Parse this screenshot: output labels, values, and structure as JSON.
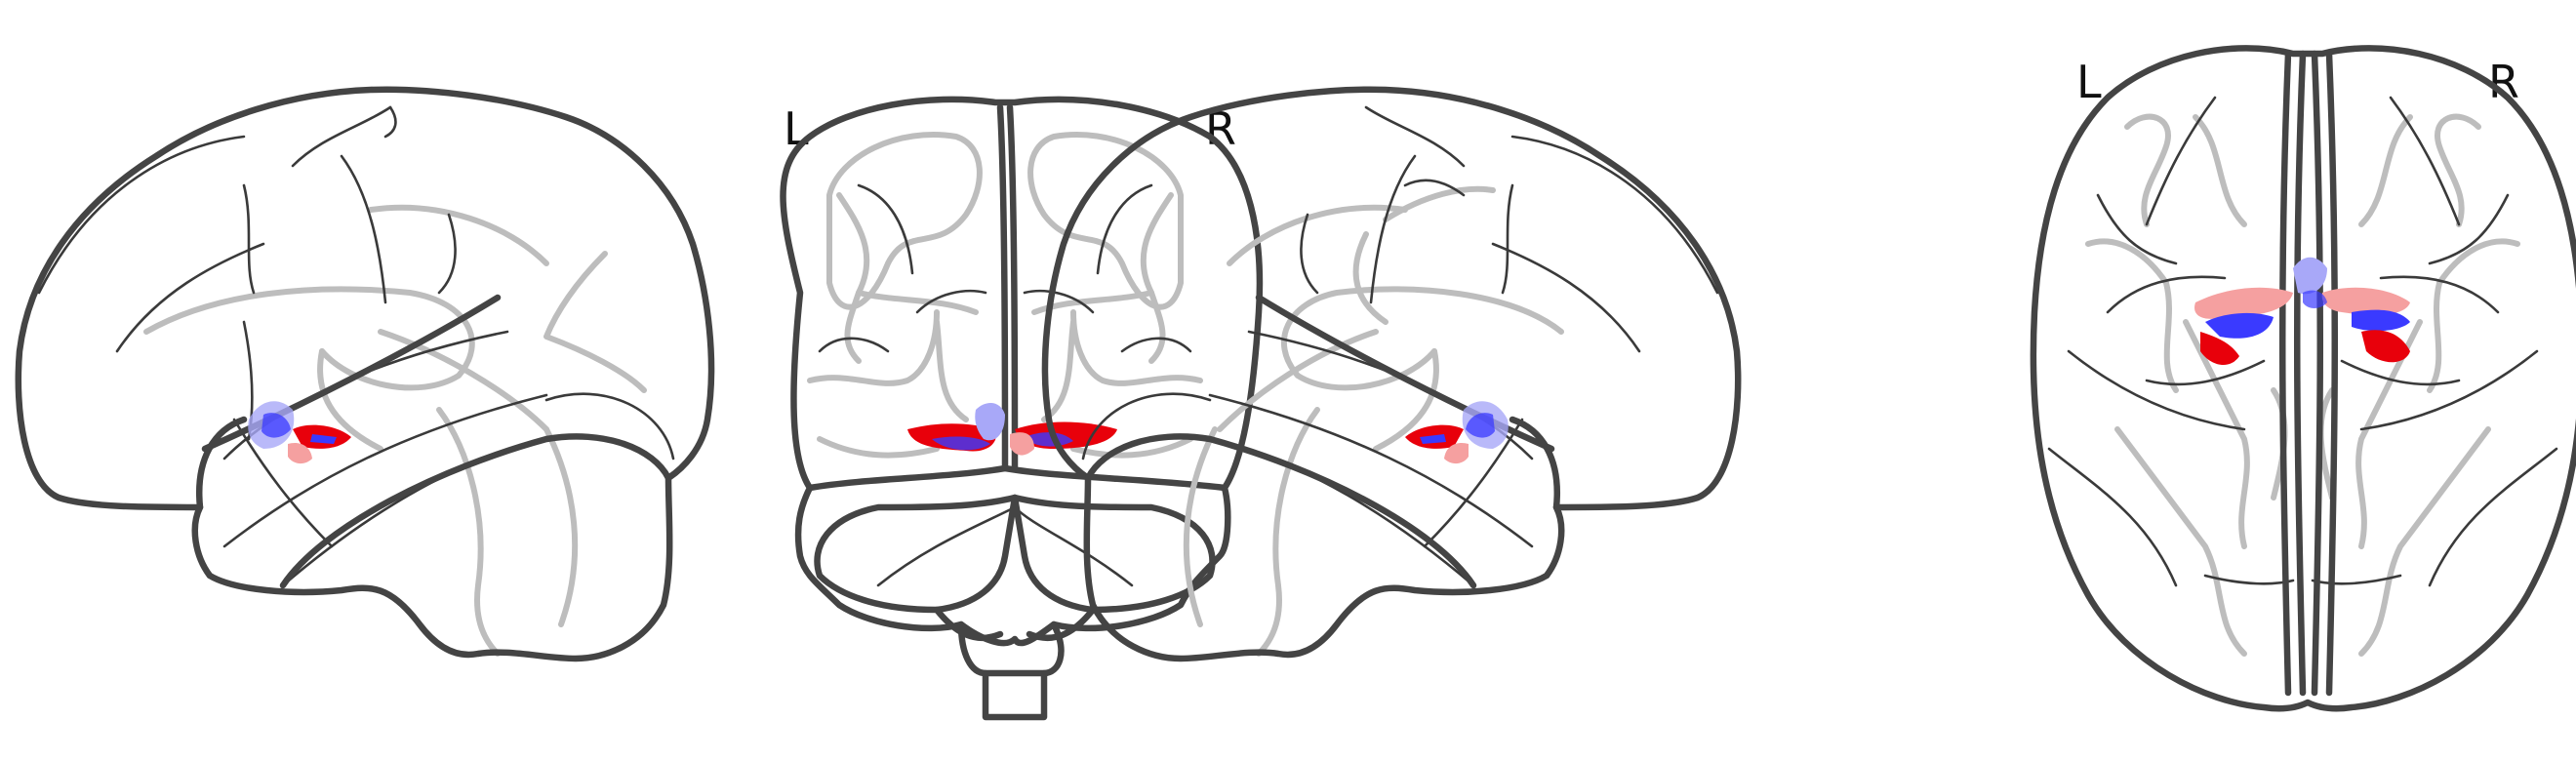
{
  "figure": {
    "views": [
      {
        "name": "left-sagittal"
      },
      {
        "name": "coronal",
        "left_label": "L",
        "right_label": "R"
      },
      {
        "name": "right-sagittal"
      },
      {
        "name": "axial",
        "left_label": "L",
        "right_label": "R"
      }
    ]
  },
  "colors": {
    "outline": "#444444",
    "sulcus": "#3a3a3a",
    "deep_structure": "#bdbdbd",
    "positive": "#e8000b",
    "positive_light": "#f5a0a0",
    "negative": "#3a3aff",
    "negative_light": "#a8a8f8"
  }
}
